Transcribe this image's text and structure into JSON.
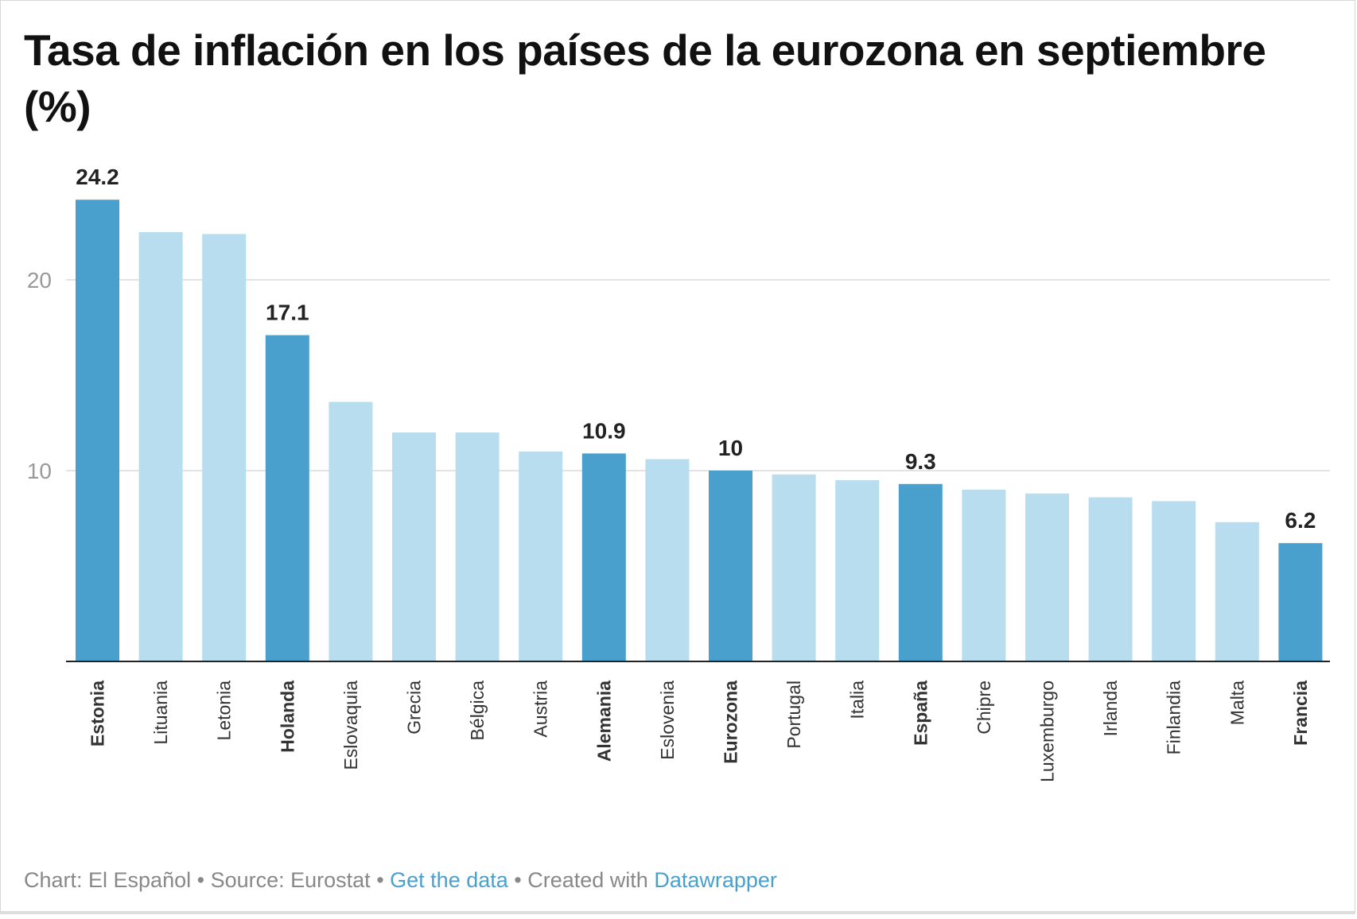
{
  "chart_data": {
    "type": "bar",
    "title": "Tasa de inflación en los países de la eurozona en septiembre (%)",
    "categories": [
      "Estonia",
      "Lituania",
      "Letonia",
      "Holanda",
      "Eslovaquia",
      "Grecia",
      "Bélgica",
      "Austria",
      "Alemania",
      "Eslovenia",
      "Eurozona",
      "Portugal",
      "Italia",
      "España",
      "Chipre",
      "Luxemburgo",
      "Irlanda",
      "Finlandia",
      "Malta",
      "Francia"
    ],
    "values": [
      24.2,
      22.5,
      22.4,
      17.1,
      13.6,
      12.0,
      12.0,
      11.0,
      10.9,
      10.6,
      10.0,
      9.8,
      9.5,
      9.3,
      9.0,
      8.8,
      8.6,
      8.4,
      7.3,
      6.2
    ],
    "highlighted": [
      "Estonia",
      "Holanda",
      "Alemania",
      "Eurozona",
      "España",
      "Francia"
    ],
    "data_labels": {
      "Estonia": "24.2",
      "Holanda": "17.1",
      "Alemania": "10.9",
      "Eurozona": "10",
      "España": "9.3",
      "Francia": "6.2"
    },
    "yticks": [
      10,
      20
    ],
    "ylim": [
      0,
      24.2
    ],
    "grid": true,
    "colors": {
      "highlight": "#4aa0cd",
      "default": "#b7ddee"
    }
  },
  "footer": {
    "chart": "Chart: El Español",
    "sep": " • ",
    "source": "Source: Eurostat",
    "get_data": "Get the data",
    "created": "Created with",
    "datawrapper": "Datawrapper"
  }
}
